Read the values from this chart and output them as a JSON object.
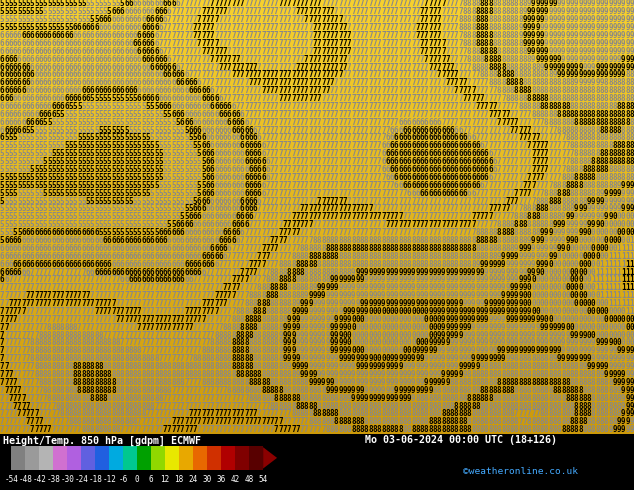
{
  "title_left": "Height/Temp. 850 hPa [gdpm] ECMWF",
  "title_right": "Mo 03-06-2024 00:00 UTC (18+126)",
  "credit": "©weatheronline.co.uk",
  "colorbar_ticks": [
    -54,
    -48,
    -42,
    -38,
    -30,
    -24,
    -18,
    -12,
    -6,
    0,
    6,
    12,
    18,
    24,
    30,
    36,
    42,
    48,
    54
  ],
  "colorbar_colors": [
    "#808080",
    "#9a9a9a",
    "#b4b4b4",
    "#d070d0",
    "#b060e0",
    "#6060e0",
    "#2060e0",
    "#00aae0",
    "#00c890",
    "#00a000",
    "#90d800",
    "#e8e800",
    "#e8a800",
    "#e86800",
    "#d03000",
    "#b00000",
    "#800000",
    "#580000"
  ],
  "bg_color_top": "#f0c030",
  "bg_color_bottom": "#d4950a",
  "text_color_main": "#000000",
  "text_color_contour": "#888888",
  "grid_rows": 55,
  "grid_cols": 148,
  "fontsize": 5.5,
  "seed": 12345
}
